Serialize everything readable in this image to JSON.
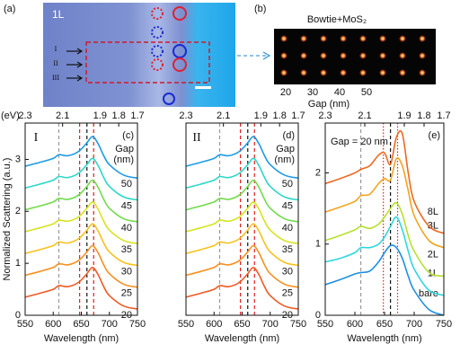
{
  "panel_a": {
    "label": "(a)",
    "layer": "1L",
    "rows": [
      "I",
      "II",
      "III"
    ]
  },
  "panel_b": {
    "label": "(b)",
    "title": "Bowtie+MoS₂",
    "gap_labels": [
      20,
      30,
      40,
      50
    ],
    "gap_title": "Gap (nm)"
  },
  "chart_data": [
    {
      "type": "line",
      "panel_label": "(c)",
      "roman": "I",
      "ylabel": "Normalized Scattering (a.u.)",
      "xlabel": "Wavelength (nm)",
      "x2label": "(eV)",
      "annotation": [
        "Gap",
        "(nm)"
      ],
      "x": [
        550,
        575,
        600,
        610,
        625,
        640,
        650,
        660,
        670,
        680,
        690,
        700,
        725,
        750
      ],
      "xlim": [
        550,
        750
      ],
      "xticks": [
        550,
        600,
        650,
        700,
        750
      ],
      "x2lim": [
        2.3,
        1.7
      ],
      "x2ticks": [
        2.3,
        2.1,
        1.9,
        1.8,
        1.7
      ],
      "ylim": [
        0,
        3.7
      ],
      "yticks": [
        0,
        1,
        2,
        3
      ],
      "vlines": [
        {
          "x": 610,
          "color": "#9a9a9a",
          "style": "dashed"
        },
        {
          "x": 647,
          "color": "#e02020",
          "style": "dashed"
        },
        {
          "x": 660,
          "color": "#111111",
          "style": "dashed"
        },
        {
          "x": 672,
          "color": "#e02020",
          "style": "dashed"
        }
      ],
      "series": [
        {
          "name": "20",
          "color": "#ef5a24",
          "values": [
            0.35,
            0.42,
            0.5,
            0.57,
            0.55,
            0.6,
            0.68,
            0.8,
            0.92,
            0.78,
            0.55,
            0.38,
            0.18,
            0.12
          ]
        },
        {
          "name": "25",
          "color": "#f7901e",
          "values": [
            0.77,
            0.84,
            0.92,
            0.99,
            0.97,
            1.02,
            1.1,
            1.22,
            1.34,
            1.2,
            0.97,
            0.8,
            0.6,
            0.54
          ]
        },
        {
          "name": "30",
          "color": "#f6c21c",
          "values": [
            1.19,
            1.26,
            1.34,
            1.41,
            1.39,
            1.44,
            1.52,
            1.64,
            1.76,
            1.62,
            1.39,
            1.22,
            1.02,
            0.96
          ]
        },
        {
          "name": "35",
          "color": "#d6e41e",
          "values": [
            1.61,
            1.68,
            1.76,
            1.83,
            1.81,
            1.86,
            1.94,
            2.06,
            2.18,
            2.04,
            1.81,
            1.64,
            1.44,
            1.38
          ]
        },
        {
          "name": "40",
          "color": "#70dc4a",
          "values": [
            2.03,
            2.1,
            2.18,
            2.25,
            2.23,
            2.28,
            2.36,
            2.48,
            2.6,
            2.46,
            2.23,
            2.06,
            1.86,
            1.8
          ]
        },
        {
          "name": "45",
          "color": "#2cd8c8",
          "values": [
            2.45,
            2.52,
            2.6,
            2.67,
            2.65,
            2.7,
            2.78,
            2.9,
            3.02,
            2.88,
            2.65,
            2.48,
            2.28,
            2.22
          ]
        },
        {
          "name": "50",
          "color": "#1e9be6",
          "values": [
            2.87,
            2.94,
            3.02,
            3.09,
            3.07,
            3.12,
            3.2,
            3.32,
            3.44,
            3.3,
            3.07,
            2.9,
            2.7,
            2.64
          ]
        }
      ]
    },
    {
      "type": "line",
      "panel_label": "(d)",
      "roman": "II",
      "xlabel": "Wavelength (nm)",
      "annotation": [
        "Gap",
        "(nm)"
      ],
      "x": [
        550,
        575,
        600,
        610,
        625,
        640,
        650,
        660,
        670,
        680,
        690,
        700,
        725,
        750
      ],
      "xlim": [
        550,
        750
      ],
      "xticks": [
        550,
        600,
        650,
        700,
        750
      ],
      "x2lim": [
        2.3,
        1.7
      ],
      "x2ticks": [
        2.3,
        2.1,
        1.9,
        1.8,
        1.7
      ],
      "ylim": [
        0,
        3.7
      ],
      "vlines": [
        {
          "x": 610,
          "color": "#9a9a9a",
          "style": "dashed"
        },
        {
          "x": 647,
          "color": "#e02020",
          "style": "dashed"
        },
        {
          "x": 660,
          "color": "#111111",
          "style": "dashed"
        },
        {
          "x": 672,
          "color": "#e02020",
          "style": "dashed"
        }
      ],
      "series": [
        {
          "name": "20",
          "color": "#ef5a24",
          "values": [
            0.35,
            0.42,
            0.5,
            0.57,
            0.55,
            0.6,
            0.68,
            0.8,
            0.92,
            0.78,
            0.55,
            0.38,
            0.18,
            0.12
          ]
        },
        {
          "name": "25",
          "color": "#f7901e",
          "values": [
            0.77,
            0.84,
            0.92,
            0.99,
            0.97,
            1.02,
            1.1,
            1.22,
            1.34,
            1.2,
            0.97,
            0.8,
            0.6,
            0.54
          ]
        },
        {
          "name": "30",
          "color": "#f6c21c",
          "values": [
            1.19,
            1.26,
            1.34,
            1.41,
            1.39,
            1.44,
            1.52,
            1.64,
            1.76,
            1.62,
            1.39,
            1.22,
            1.02,
            0.96
          ]
        },
        {
          "name": "35",
          "color": "#d6e41e",
          "values": [
            1.61,
            1.68,
            1.76,
            1.83,
            1.81,
            1.86,
            1.94,
            2.06,
            2.18,
            2.04,
            1.81,
            1.64,
            1.44,
            1.38
          ]
        },
        {
          "name": "40",
          "color": "#70dc4a",
          "values": [
            2.03,
            2.1,
            2.18,
            2.25,
            2.23,
            2.28,
            2.36,
            2.48,
            2.6,
            2.46,
            2.23,
            2.06,
            1.86,
            1.8
          ]
        },
        {
          "name": "45",
          "color": "#2cd8c8",
          "values": [
            2.45,
            2.52,
            2.6,
            2.67,
            2.65,
            2.7,
            2.78,
            2.9,
            3.02,
            2.88,
            2.65,
            2.48,
            2.28,
            2.22
          ]
        },
        {
          "name": "50",
          "color": "#1e9be6",
          "values": [
            2.87,
            2.94,
            3.02,
            3.09,
            3.07,
            3.12,
            3.2,
            3.32,
            3.44,
            3.3,
            3.07,
            2.9,
            2.7,
            2.64
          ]
        }
      ]
    },
    {
      "type": "line",
      "panel_label": "(e)",
      "xlabel": "Wavelength (nm)",
      "annotation": [
        "Gap = 20 nm"
      ],
      "x": [
        550,
        575,
        600,
        610,
        625,
        640,
        650,
        660,
        670,
        680,
        690,
        700,
        725,
        750
      ],
      "xlim": [
        550,
        750
      ],
      "xticks": [
        550,
        600,
        650,
        700,
        750
      ],
      "x2lim": [
        2.3,
        1.7
      ],
      "x2ticks": [
        2.3,
        2.1,
        1.9,
        1.8,
        1.7
      ],
      "ylim": [
        0,
        2.7
      ],
      "yticks": [
        0,
        1,
        2
      ],
      "vlines": [
        {
          "x": 610,
          "color": "#9a9a9a",
          "style": "dashed"
        },
        {
          "x": 648,
          "color": "#e02020",
          "style": "dotted"
        },
        {
          "x": 660,
          "color": "#111111",
          "style": "dashed"
        },
        {
          "x": 672,
          "color": "#e02020",
          "style": "dotted"
        }
      ],
      "series": [
        {
          "name": "bare",
          "color": "#1e8fe0",
          "values": [
            0.43,
            0.5,
            0.58,
            0.6,
            0.62,
            0.75,
            0.88,
            0.98,
            0.95,
            0.8,
            0.55,
            0.35,
            0.08,
            0.0
          ]
        },
        {
          "name": "1L",
          "color": "#2ed7e0",
          "values": [
            0.75,
            0.8,
            0.88,
            0.95,
            0.95,
            1.0,
            1.1,
            1.25,
            1.38,
            1.2,
            0.9,
            0.65,
            0.35,
            0.28
          ]
        },
        {
          "name": "2L",
          "color": "#b6e02e",
          "values": [
            1.05,
            1.12,
            1.2,
            1.25,
            1.22,
            1.28,
            1.38,
            1.5,
            1.58,
            1.42,
            1.12,
            0.9,
            0.6,
            0.55
          ]
        },
        {
          "name": "3L",
          "color": "#f4a41e",
          "values": [
            1.45,
            1.52,
            1.6,
            1.68,
            1.7,
            1.85,
            1.92,
            1.9,
            2.2,
            2.1,
            1.75,
            1.4,
            1.05,
            0.95
          ]
        },
        {
          "name": "8L",
          "color": "#ef6a22",
          "values": [
            1.85,
            1.92,
            2.0,
            2.05,
            2.1,
            2.25,
            2.28,
            2.12,
            2.5,
            2.55,
            2.0,
            1.6,
            1.25,
            1.15
          ]
        }
      ]
    }
  ]
}
